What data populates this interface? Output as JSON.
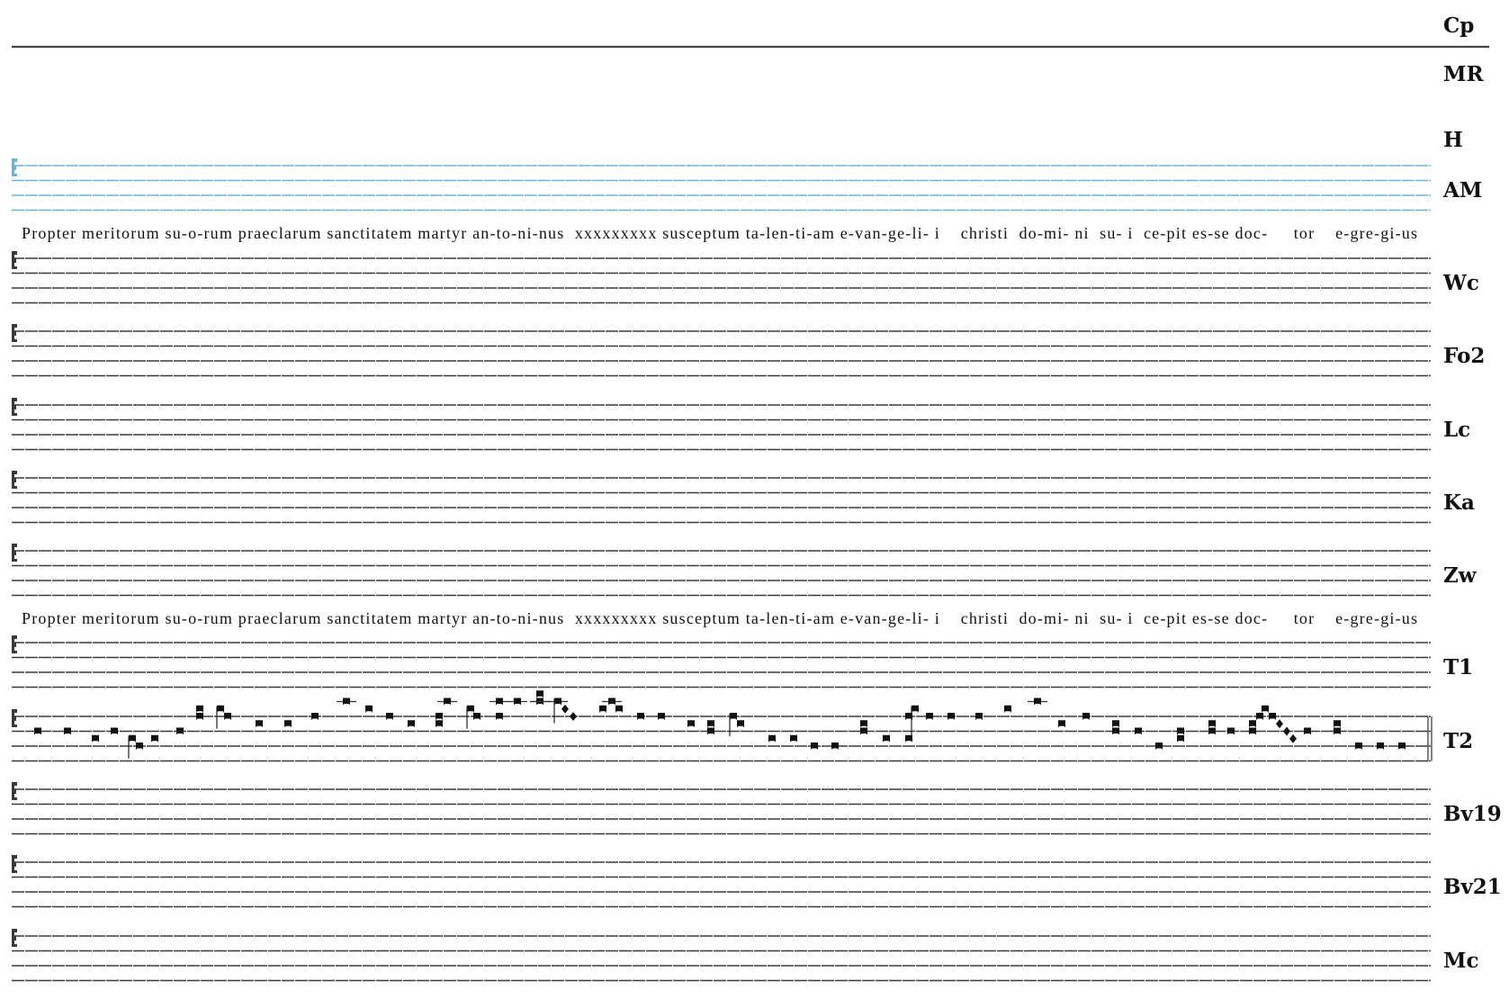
{
  "colors": {
    "staff": "#3a3a3a",
    "highlight_staff": "#6ab4d6",
    "notes": "#111111"
  },
  "sources": [
    {
      "label": "Cp",
      "kind": "rule"
    },
    {
      "label": "MR",
      "kind": "empty"
    },
    {
      "label": "H",
      "kind": "empty"
    },
    {
      "label": "AM",
      "kind": "staff",
      "selected": true
    },
    {
      "label": "Wc",
      "kind": "staff"
    },
    {
      "label": "Fo2",
      "kind": "staff"
    },
    {
      "label": "Lc",
      "kind": "staff"
    },
    {
      "label": "Ka",
      "kind": "staff"
    },
    {
      "label": "Zw",
      "kind": "staff"
    },
    {
      "label": "T1",
      "kind": "staff"
    },
    {
      "label": "T2",
      "kind": "staff",
      "final_barline": true,
      "notes_legend": "pos = staff position (0 = top line, +1 per step downward); p = punctum, d = diamond",
      "notes": [
        [
          2,
          "p"
        ],
        [
          2,
          "p"
        ],
        [
          3,
          "p"
        ],
        [
          2,
          "p"
        ],
        [
          3,
          "p"
        ],
        [
          4,
          "p"
        ],
        [
          3,
          "p"
        ],
        [
          2,
          "p"
        ],
        [
          0,
          "p"
        ],
        [
          -1,
          "p"
        ],
        [
          -1,
          "p"
        ],
        [
          0,
          "p"
        ],
        [
          1,
          "p"
        ],
        [
          1,
          "p"
        ],
        [
          0,
          "p"
        ],
        [
          -2,
          "p"
        ],
        [
          -1,
          "p"
        ],
        [
          0,
          "p"
        ],
        [
          1,
          "p"
        ],
        [
          1,
          "p"
        ],
        [
          0,
          "p"
        ],
        [
          -2,
          "p"
        ],
        [
          -1,
          "p"
        ],
        [
          0,
          "p"
        ],
        [
          0,
          "p"
        ],
        [
          -2,
          "p"
        ],
        [
          -2,
          "p"
        ],
        [
          -2,
          "p"
        ],
        [
          -3,
          "p"
        ],
        [
          -2,
          "p"
        ],
        [
          -1,
          "d"
        ],
        [
          0,
          "d"
        ],
        [
          -1,
          "p"
        ],
        [
          -2,
          "p"
        ],
        [
          -1,
          "p"
        ],
        [
          0,
          "p"
        ],
        [
          0,
          "p"
        ],
        [
          1,
          "p"
        ],
        [
          2,
          "p"
        ],
        [
          1,
          "p"
        ],
        [
          0,
          "p"
        ],
        [
          1,
          "p"
        ],
        [
          3,
          "p"
        ],
        [
          3,
          "p"
        ],
        [
          4,
          "p"
        ],
        [
          4,
          "p"
        ],
        [
          2,
          "p"
        ],
        [
          1,
          "p"
        ],
        [
          3,
          "p"
        ],
        [
          3,
          "p"
        ],
        [
          0,
          "p"
        ],
        [
          -1,
          "p"
        ],
        [
          0,
          "p"
        ],
        [
          0,
          "p"
        ],
        [
          0,
          "p"
        ],
        [
          -1,
          "p"
        ],
        [
          -2,
          "p"
        ],
        [
          1,
          "p"
        ],
        [
          0,
          "p"
        ],
        [
          2,
          "p"
        ],
        [
          1,
          "p"
        ],
        [
          2,
          "p"
        ],
        [
          4,
          "p"
        ],
        [
          3,
          "p"
        ],
        [
          2,
          "p"
        ],
        [
          2,
          "p"
        ],
        [
          1,
          "p"
        ],
        [
          2,
          "p"
        ],
        [
          2,
          "p"
        ],
        [
          1,
          "p"
        ],
        [
          0,
          "p"
        ],
        [
          -1,
          "p"
        ],
        [
          0,
          "p"
        ],
        [
          1,
          "d"
        ],
        [
          2,
          "d"
        ],
        [
          3,
          "d"
        ],
        [
          2,
          "p"
        ],
        [
          2,
          "p"
        ],
        [
          1,
          "p"
        ],
        [
          4,
          "p"
        ],
        [
          4,
          "p"
        ],
        [
          4,
          "p"
        ]
      ]
    },
    {
      "label": "Bv19",
      "kind": "staff"
    },
    {
      "label": "Bv21",
      "kind": "staff"
    },
    {
      "label": "Mc",
      "kind": "staff"
    }
  ],
  "lyrics": [
    "Propter meritorum su-o-rum praeclarum sanctitatem martyr an-to-ni-nus  xxxxxxxxx susceptum ta-len-ti-am e-van-ge-li- i    christi  do-mi- ni  su- i  ce-pit es-se doc-     tor    e-gre-gi-us",
    "Propter meritorum su-o-rum praeclarum sanctitatem martyr an-to-ni-nus  xxxxxxxxx susceptum ta-len-ti-am e-van-ge-li- i    christi  do-mi- ni  su- i  ce-pit es-se doc-     tor    e-gre-gi-us"
  ]
}
